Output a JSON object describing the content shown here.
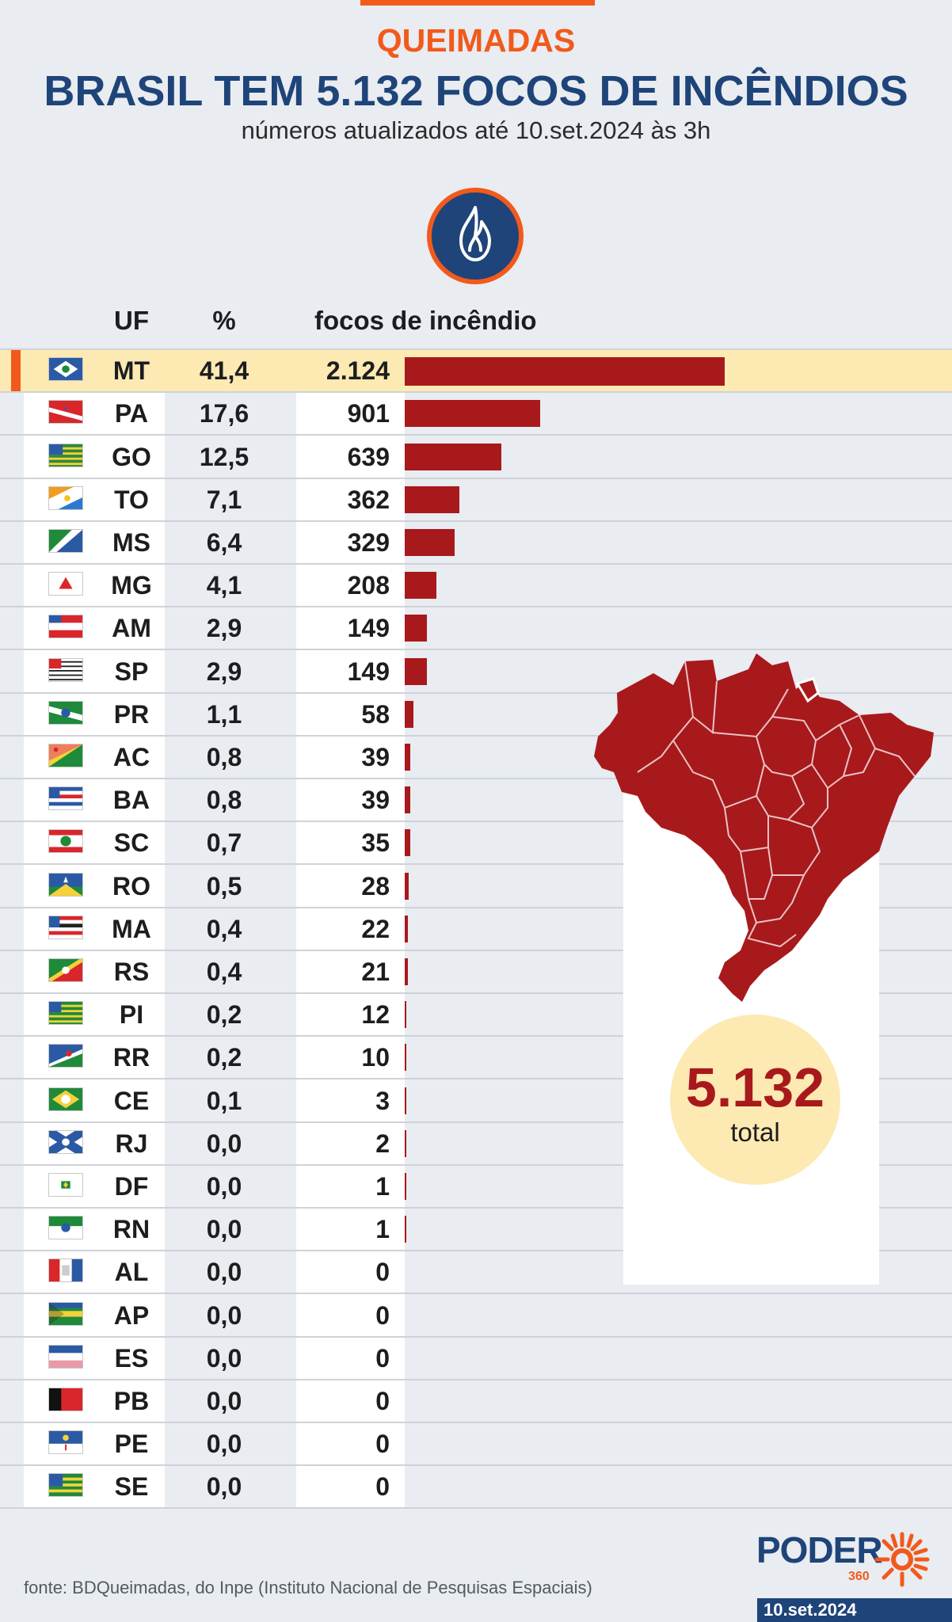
{
  "header": {
    "kicker": "QUEIMADAS",
    "title": "BRASIL TEM 5.132 FOCOS DE INCÊNDIOS",
    "subtitle": "números atualizados até 10.set.2024 às 3h"
  },
  "columns": {
    "uf": "UF",
    "pct": "%",
    "count": "focos de incêndio"
  },
  "colors": {
    "bar": "#a8191c",
    "accent": "#f15a1c",
    "navy": "#1e4479",
    "highlight": "#fde9b2"
  },
  "chart_data": {
    "type": "bar",
    "orientation": "horizontal",
    "categories": [
      "MT",
      "PA",
      "GO",
      "TO",
      "MS",
      "MG",
      "AM",
      "SP",
      "PR",
      "AC",
      "BA",
      "SC",
      "RO",
      "MA",
      "RS",
      "PI",
      "RR",
      "CE",
      "RJ",
      "DF",
      "RN",
      "AL",
      "AP",
      "ES",
      "PB",
      "PE",
      "SE"
    ],
    "percent": [
      "41,4",
      "17,6",
      "12,5",
      "7,1",
      "6,4",
      "4,1",
      "2,9",
      "2,9",
      "1,1",
      "0,8",
      "0,8",
      "0,7",
      "0,5",
      "0,4",
      "0,4",
      "0,2",
      "0,2",
      "0,1",
      "0,0",
      "0,0",
      "0,0",
      "0,0",
      "0,0",
      "0,0",
      "0,0",
      "0,0",
      "0,0"
    ],
    "values": [
      2124,
      901,
      639,
      362,
      329,
      208,
      149,
      149,
      58,
      39,
      39,
      35,
      28,
      22,
      21,
      12,
      10,
      3,
      2,
      1,
      1,
      0,
      0,
      0,
      0,
      0,
      0
    ],
    "value_labels": [
      "2.124",
      "901",
      "639",
      "362",
      "329",
      "208",
      "149",
      "149",
      "58",
      "39",
      "39",
      "35",
      "28",
      "22",
      "21",
      "12",
      "10",
      "3",
      "2",
      "1",
      "1",
      "0",
      "0",
      "0",
      "0",
      "0",
      "0"
    ],
    "highlighted": "MT",
    "xlim": [
      0,
      2124
    ]
  },
  "total": {
    "value": "5.132",
    "label": "total"
  },
  "footer": {
    "source": "fonte: BDQueimadas, do Inpe (Instituto Nacional de Pesquisas Espaciais)",
    "logo": "PODER",
    "logo_sub": "360",
    "date": "10.set.2024"
  }
}
